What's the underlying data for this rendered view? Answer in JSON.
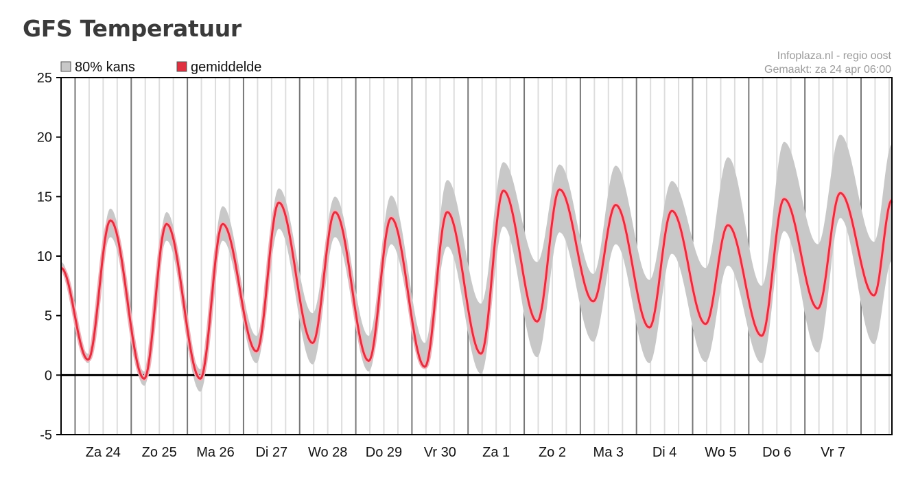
{
  "page": {
    "title": "GFS Temperatuur"
  },
  "source": {
    "line1": "Infoplaza.nl - regio oost",
    "line2": "Gemaakt: za 24 apr 06:00"
  },
  "colors": {
    "band": "#c8c8c8",
    "mean": "#e03040",
    "mean_glow": "#f2b0b8",
    "zero_line": "#000000",
    "day_line": "#777777",
    "grid": "#dddddd"
  },
  "chart_data": {
    "type": "line",
    "title": "GFS Temperatuur",
    "xlabel": "",
    "ylabel": "",
    "ylim": [
      -5,
      25
    ],
    "yticks": [
      -5,
      0,
      5,
      10,
      15,
      20,
      25
    ],
    "x_unit": "days since Za 24 00:00",
    "xlim": [
      -0.25,
      14.55
    ],
    "grid": true,
    "legend": "top-left",
    "legend_entries": [
      "80% kans",
      "gemiddelde"
    ],
    "categories": [
      "Za 24",
      "Zo 25",
      "Ma 26",
      "Di 27",
      "Wo 28",
      "Do 29",
      "Vr 30",
      "Za 1",
      "Zo 2",
      "Ma 3",
      "Di 4",
      "Wo 5",
      "Do 6",
      "Vr 7"
    ],
    "series": [
      {
        "name": "gemiddelde",
        "x": [
          -0.25,
          0.23,
          0.63,
          1.23,
          1.63,
          2.23,
          2.63,
          3.23,
          3.63,
          4.23,
          4.63,
          5.23,
          5.63,
          6.23,
          6.63,
          7.23,
          7.63,
          8.23,
          8.63,
          9.23,
          9.63,
          10.23,
          10.63,
          11.23,
          11.63,
          12.23,
          12.63,
          13.23,
          13.63,
          14.23,
          14.55
        ],
        "values": [
          9.0,
          1.3,
          13.0,
          -0.3,
          12.7,
          -0.3,
          12.7,
          2.0,
          14.5,
          2.7,
          13.7,
          1.2,
          13.2,
          0.7,
          13.7,
          1.8,
          15.5,
          4.5,
          15.6,
          6.2,
          14.3,
          4.0,
          13.8,
          4.3,
          12.6,
          3.3,
          14.8,
          5.6,
          15.3,
          6.7,
          14.7
        ]
      },
      {
        "name": "80% kans (hoog)",
        "x": [
          -0.25,
          0.23,
          0.63,
          1.23,
          1.63,
          2.23,
          2.63,
          3.23,
          3.63,
          4.23,
          4.63,
          5.23,
          5.63,
          6.23,
          6.63,
          7.23,
          7.63,
          8.23,
          8.63,
          9.23,
          9.63,
          10.23,
          10.63,
          11.23,
          11.63,
          12.23,
          12.63,
          13.23,
          13.63,
          14.23,
          14.55
        ],
        "values": [
          9.5,
          1.8,
          14.0,
          0.3,
          13.7,
          0.5,
          14.2,
          3.3,
          15.7,
          5.2,
          15.0,
          3.3,
          15.1,
          2.7,
          16.4,
          6.0,
          17.9,
          9.5,
          17.7,
          8.5,
          17.6,
          8.0,
          16.3,
          9.0,
          18.3,
          7.5,
          19.6,
          11.0,
          20.2,
          11.2,
          19.4
        ]
      },
      {
        "name": "80% kans (laag)",
        "x": [
          -0.25,
          0.23,
          0.63,
          1.23,
          1.63,
          2.23,
          2.63,
          3.23,
          3.63,
          4.23,
          4.63,
          5.23,
          5.63,
          6.23,
          6.63,
          7.23,
          7.63,
          8.23,
          8.63,
          9.23,
          9.63,
          10.23,
          10.63,
          11.23,
          11.63,
          12.23,
          12.63,
          13.23,
          13.63,
          14.23,
          14.55
        ],
        "values": [
          8.7,
          1.0,
          11.6,
          -0.9,
          11.3,
          -1.4,
          11.3,
          1.0,
          12.3,
          0.9,
          11.6,
          0.3,
          11.0,
          0.5,
          10.8,
          0.1,
          12.5,
          1.5,
          12.0,
          2.8,
          11.0,
          1.0,
          10.2,
          1.1,
          9.2,
          1.0,
          12.1,
          1.9,
          13.2,
          2.6,
          9.6
        ]
      }
    ]
  }
}
